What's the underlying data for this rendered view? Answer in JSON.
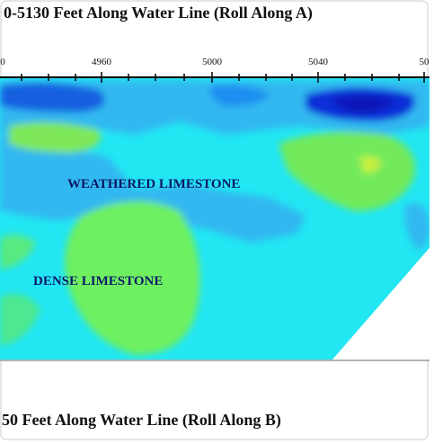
{
  "header": {
    "title": "0-5130 Feet Along Water Line (Roll Along A)"
  },
  "axis": {
    "tick_labels": [
      "0",
      "4960",
      "5000",
      "5040",
      "50"
    ]
  },
  "annotations": [
    "WEATHERED LIMESTONE",
    "DENSE LIMESTONE"
  ],
  "footer": {
    "title": "50 Feet Along Water Line (Roll Along B)"
  }
}
